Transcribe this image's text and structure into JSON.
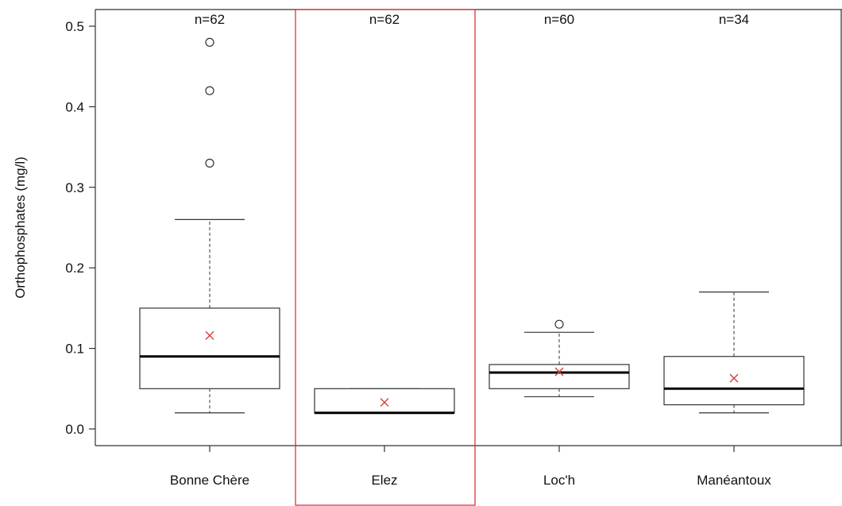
{
  "chart_data": {
    "type": "box",
    "title": "",
    "xlabel": "",
    "ylabel": "Orthophosphates (mg/l)",
    "ylim": [
      -0.02,
      0.52
    ],
    "yticks": [
      "0.0",
      "0.1",
      "0.2",
      "0.3",
      "0.4",
      "0.5"
    ],
    "grid": false,
    "mean_marker": "x",
    "mean_color": "#d04040",
    "highlight_color": "#d62728",
    "highlighted_category": "Elez",
    "categories": [
      "Bonne Chère",
      "Elez",
      "Loc'h",
      "Manéantoux"
    ],
    "counts": [
      "n=62",
      "n=62",
      "n=60",
      "n=34"
    ],
    "boxes": [
      {
        "category": "Bonne Chère",
        "whisker_low": 0.02,
        "q1": 0.05,
        "median": 0.09,
        "q3": 0.15,
        "whisker_high": 0.26,
        "mean": 0.116,
        "outliers": [
          0.33,
          0.42,
          0.48
        ]
      },
      {
        "category": "Elez",
        "whisker_low": 0.02,
        "q1": 0.02,
        "median": 0.02,
        "q3": 0.05,
        "whisker_high": 0.05,
        "mean": 0.033,
        "outliers": []
      },
      {
        "category": "Loc'h",
        "whisker_low": 0.04,
        "q1": 0.05,
        "median": 0.07,
        "q3": 0.08,
        "whisker_high": 0.12,
        "mean": 0.071,
        "outliers": [
          0.13
        ]
      },
      {
        "category": "Manéantoux",
        "whisker_low": 0.02,
        "q1": 0.03,
        "median": 0.05,
        "q3": 0.09,
        "whisker_high": 0.17,
        "mean": 0.063,
        "outliers": []
      }
    ]
  }
}
